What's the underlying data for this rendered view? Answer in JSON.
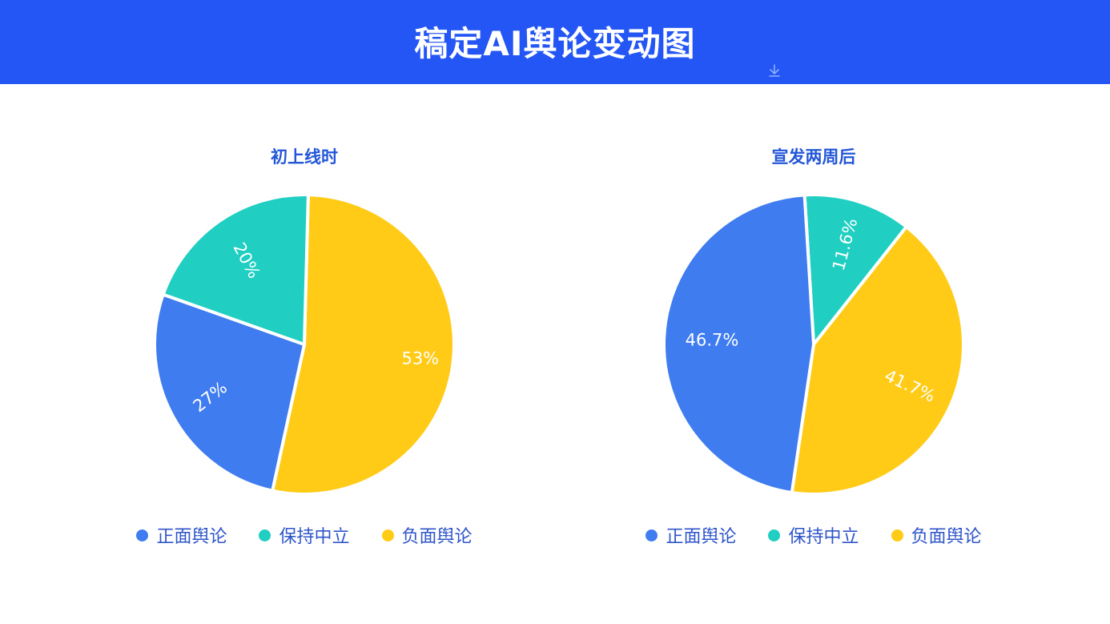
{
  "header": {
    "title": "稿定AI舆论变动图"
  },
  "colors": {
    "header_bg": "#2356f5",
    "positive": "#3f7cf0",
    "neutral": "#20cfc2",
    "negative": "#ffcb16",
    "title_text": "#2356d8",
    "legend_text": "#2f55c9"
  },
  "chart_data": [
    {
      "type": "pie",
      "title": "初上线时",
      "legend_position": "bottom",
      "slices": [
        {
          "name": "正面舆论",
          "value": 27,
          "label": "27%",
          "color": "#3f7cf0"
        },
        {
          "name": "保持中立",
          "value": 20,
          "label": "20%",
          "color": "#20cfc2"
        },
        {
          "name": "负面舆论",
          "value": 53,
          "label": "53%",
          "color": "#ffcb16"
        }
      ]
    },
    {
      "type": "pie",
      "title": "宣发两周后",
      "legend_position": "bottom",
      "slices": [
        {
          "name": "正面舆论",
          "value": 46.7,
          "label": "46.7%",
          "color": "#3f7cf0"
        },
        {
          "name": "保持中立",
          "value": 11.6,
          "label": "11.6%",
          "color": "#20cfc2"
        },
        {
          "name": "负面舆论",
          "value": 41.7,
          "label": "41.7%",
          "color": "#ffcb16"
        }
      ]
    }
  ]
}
